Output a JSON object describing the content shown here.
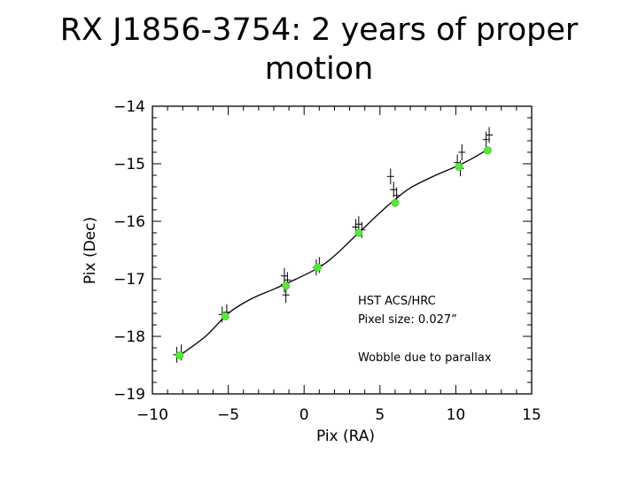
{
  "slide": {
    "title_line1": "RX J1856-3754: 2 years of proper",
    "title_line2": "motion"
  },
  "chart_data": {
    "type": "scatter",
    "title": "",
    "xlabel": "Pix (RA)",
    "ylabel": "Pix (Dec)",
    "xlim": [
      -10,
      15
    ],
    "ylim": [
      -19,
      -14
    ],
    "x_ticks": [
      -10,
      -5,
      0,
      5,
      10,
      15
    ],
    "y_ticks": [
      -19,
      -18,
      -17,
      -16,
      -15,
      -14
    ],
    "grid": false,
    "series": [
      {
        "marker": "green-dot",
        "color": "#55e83a",
        "x": [
          -8.2,
          -5.2,
          -1.2,
          0.9,
          3.6,
          6.0,
          10.2,
          12.1
        ],
        "y": [
          -18.33,
          -17.65,
          -17.12,
          -16.8,
          -16.2,
          -15.68,
          -15.05,
          -14.77
        ]
      },
      {
        "marker": "black-cross",
        "color": "#000000",
        "x": [
          -8.4,
          -8.1,
          -5.4,
          -5.1,
          -1.3,
          -1.3,
          -1.2,
          -1.1,
          0.8,
          1.0,
          3.4,
          3.6,
          3.8,
          5.7,
          5.9,
          6.1,
          10.1,
          10.3,
          10.4,
          12.0,
          12.2
        ],
        "y": [
          -18.32,
          -18.28,
          -17.62,
          -17.58,
          -16.95,
          -17.1,
          -17.28,
          -17.02,
          -16.8,
          -16.76,
          -16.1,
          -16.05,
          -16.15,
          -15.22,
          -15.45,
          -15.55,
          -14.98,
          -15.08,
          -14.8,
          -14.58,
          -14.5
        ]
      },
      {
        "marker": "line",
        "color": "#000000",
        "x": [
          -8.3,
          -6.5,
          -5.0,
          -3.5,
          -2.0,
          -0.5,
          1.0,
          2.0,
          3.0,
          4.0,
          5.0,
          6.0,
          7.0,
          8.5,
          10.0,
          11.0,
          12.3
        ],
        "y": [
          -18.35,
          -18.0,
          -17.6,
          -17.35,
          -17.18,
          -17.0,
          -16.8,
          -16.6,
          -16.35,
          -16.1,
          -15.85,
          -15.62,
          -15.42,
          -15.22,
          -15.05,
          -14.92,
          -14.72
        ]
      }
    ],
    "annotations": [
      "HST ACS/HRC",
      "Pixel size: 0.027”",
      "Wobble due to  parallax"
    ]
  }
}
